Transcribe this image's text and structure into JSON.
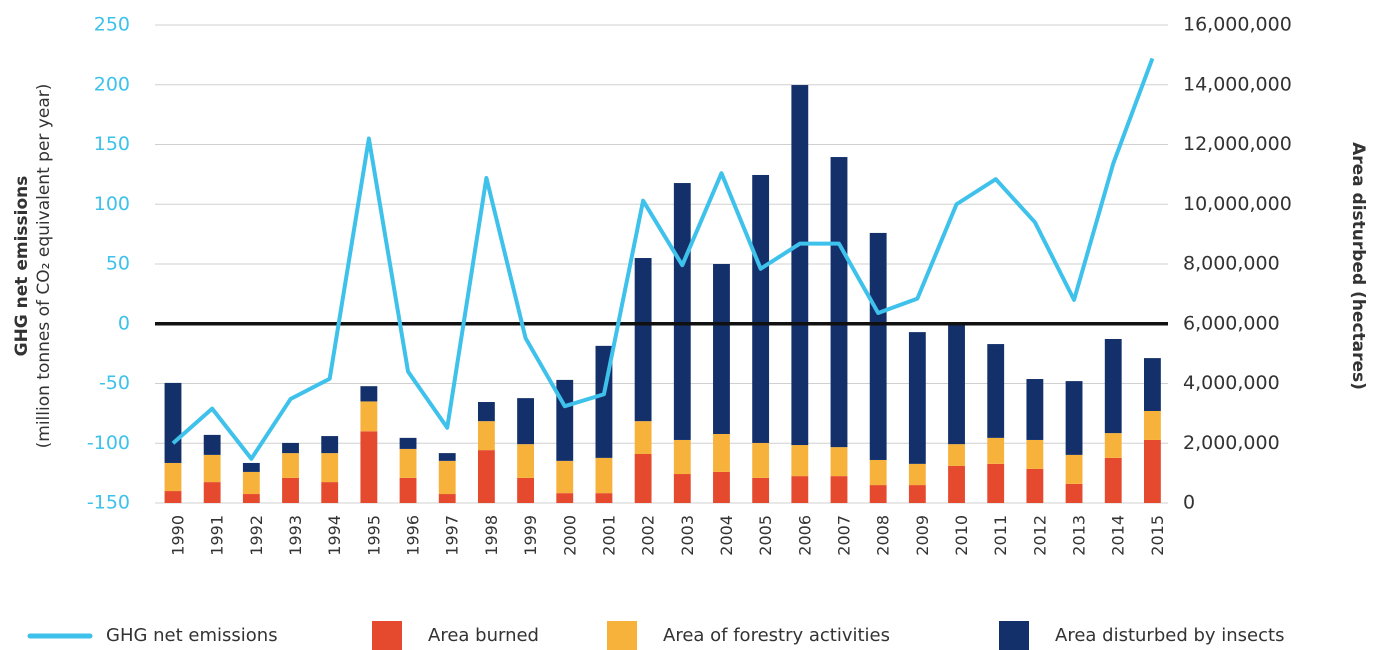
{
  "chart_data": {
    "type": "bar",
    "stacked": true,
    "y_label": "GHG net emissions",
    "y_sublabel": "(million tonnes of CO₂ equivalent per year)",
    "y2_label": "Area disturbed (hectares)",
    "categories": [
      "1990",
      "1991",
      "1992",
      "1993",
      "1994",
      "1995",
      "1996",
      "1997",
      "1998",
      "1999",
      "2000",
      "2001",
      "2002",
      "2003",
      "2004",
      "2005",
      "2006",
      "2007",
      "2008",
      "2009",
      "2010",
      "2011",
      "2012",
      "2013",
      "2014",
      "2015"
    ],
    "series": [
      {
        "name": "GHG net emissions",
        "type": "line",
        "color": "#3ec1ea",
        "values": [
          -100,
          -71,
          -113,
          -63,
          -46,
          155,
          -40,
          -87,
          122,
          -12,
          -69,
          -59,
          103,
          49,
          126,
          46,
          67,
          67,
          9,
          21,
          100,
          121,
          85,
          20,
          134,
          222
        ]
      },
      {
        "name": "Area burned",
        "type": "bar",
        "axis": "y2",
        "color": "#e64a2e",
        "values": [
          400000,
          700000,
          300000,
          840000,
          700000,
          2400000,
          840000,
          300000,
          1770000,
          840000,
          330000,
          330000,
          1640000,
          970000,
          1040000,
          840000,
          900000,
          900000,
          600000,
          600000,
          1240000,
          1310000,
          1140000,
          640000,
          1510000,
          2110000
        ]
      },
      {
        "name": "Area of forestry activities",
        "type": "bar",
        "axis": "y2",
        "color": "#f7b23b",
        "values": [
          940000,
          910000,
          740000,
          830000,
          970000,
          1000000,
          970000,
          1110000,
          970000,
          1130000,
          1080000,
          1180000,
          1100000,
          1140000,
          1270000,
          1170000,
          1040000,
          970000,
          840000,
          710000,
          730000,
          870000,
          970000,
          970000,
          830000,
          970000
        ]
      },
      {
        "name": "Area disturbed by insects",
        "type": "bar",
        "axis": "y2",
        "color": "#13306b",
        "values": [
          2680000,
          670000,
          300000,
          340000,
          570000,
          510000,
          370000,
          260000,
          640000,
          1540000,
          2710000,
          3750000,
          5460000,
          8600000,
          5690000,
          8970000,
          12050000,
          9710000,
          7600000,
          4410000,
          4060000,
          3140000,
          2040000,
          2470000,
          3150000,
          1770000
        ]
      }
    ],
    "ylim": [
      -150,
      250
    ],
    "yticks": [
      -150,
      -100,
      -50,
      0,
      50,
      100,
      150,
      200,
      250
    ],
    "y2lim": [
      0,
      16000000
    ],
    "y2ticks": [
      0,
      {
        "value": 2000000,
        "label": "2,000,000"
      },
      {
        "value": 4000000,
        "label": "4,000,000"
      },
      {
        "value": 6000000,
        "label": "6,000,000"
      },
      {
        "value": 8000000,
        "label": "8,000,000"
      },
      {
        "value": 10000000,
        "label": "10,000,000"
      },
      {
        "value": 12000000,
        "label": "12,000,000"
      },
      {
        "value": 14000000,
        "label": "14,000,000"
      },
      {
        "value": 16000000,
        "label": "16,000,000"
      }
    ],
    "grid": true,
    "legend": "bottom"
  }
}
